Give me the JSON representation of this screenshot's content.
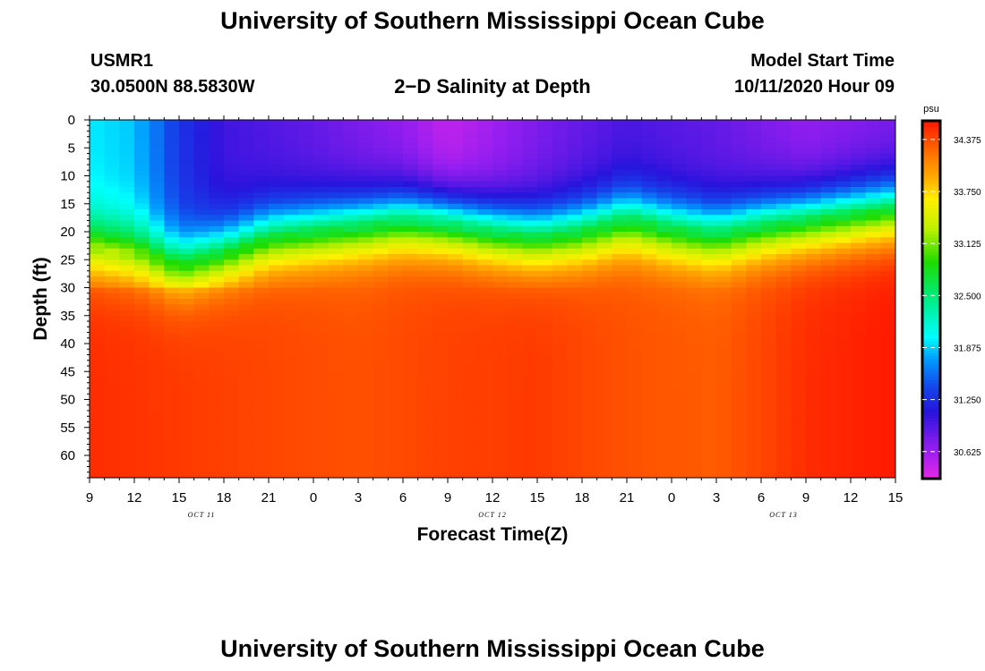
{
  "page": {
    "top_title": "University of Southern Mississippi Ocean Cube",
    "bottom_title": "University of Southern Mississippi Ocean Cube",
    "station": "USMR1",
    "coords": "30.0500N 88.5830W",
    "plot_title": "2−D Salinity at Depth",
    "model_label": "Model Start Time",
    "model_time": "10/11/2020 Hour 09"
  },
  "chart_data": {
    "type": "heatmap",
    "title": "2−D Salinity at Depth",
    "xlabel": "Forecast Time(Z)",
    "ylabel": "Depth (ft)",
    "x_ticks": [
      "9",
      "12",
      "15",
      "18",
      "21",
      "0",
      "3",
      "6",
      "9",
      "12",
      "15",
      "18",
      "21",
      "0",
      "3",
      "6",
      "9",
      "12",
      "15"
    ],
    "x_range_hours": [
      0,
      54
    ],
    "date_labels": [
      {
        "label": "OCT 11",
        "hour": 7.5
      },
      {
        "label": "OCT 12",
        "hour": 27
      },
      {
        "label": "OCT 13",
        "hour": 46.5
      }
    ],
    "y_ticks": [
      0,
      5,
      10,
      15,
      20,
      25,
      30,
      35,
      40,
      45,
      50,
      55,
      60
    ],
    "y_range": [
      0,
      64
    ],
    "colorbar": {
      "unit": "psu",
      "min": 30.3,
      "max": 34.6,
      "ticks": [
        "34.375",
        "33.750",
        "33.125",
        "32.500",
        "31.875",
        "31.250",
        "30.625"
      ]
    },
    "halocline_depth_ft": [
      {
        "hour": 0,
        "depth": 21
      },
      {
        "hour": 3,
        "depth": 22
      },
      {
        "hour": 6,
        "depth": 24.5
      },
      {
        "hour": 9,
        "depth": 22
      },
      {
        "hour": 12,
        "depth": 19
      },
      {
        "hour": 15,
        "depth": 18
      },
      {
        "hour": 18,
        "depth": 17
      },
      {
        "hour": 21,
        "depth": 16
      },
      {
        "hour": 24,
        "depth": 16.5
      },
      {
        "hour": 27,
        "depth": 18
      },
      {
        "hour": 30,
        "depth": 19
      },
      {
        "hour": 33,
        "depth": 18
      },
      {
        "hour": 36,
        "depth": 16
      },
      {
        "hour": 39,
        "depth": 17.5
      },
      {
        "hour": 42,
        "depth": 18.5
      },
      {
        "hour": 45,
        "depth": 17
      },
      {
        "hour": 48,
        "depth": 16
      },
      {
        "hour": 51,
        "depth": 15
      },
      {
        "hour": 54,
        "depth": 14
      }
    ],
    "surface_salinity": [
      {
        "hour": 0,
        "value": 31.95
      },
      {
        "hour": 3,
        "value": 31.85
      },
      {
        "hour": 6,
        "value": 31.3
      },
      {
        "hour": 9,
        "value": 31.0
      },
      {
        "hour": 15,
        "value": 30.85
      },
      {
        "hour": 21,
        "value": 30.65
      },
      {
        "hour": 24,
        "value": 30.45
      },
      {
        "hour": 30,
        "value": 30.75
      },
      {
        "hour": 36,
        "value": 30.95
      },
      {
        "hour": 42,
        "value": 30.85
      },
      {
        "hour": 48,
        "value": 30.65
      },
      {
        "hour": 54,
        "value": 30.75
      }
    ],
    "bottom_salinity": [
      {
        "hour": 0,
        "value": 34.5
      },
      {
        "hour": 6,
        "value": 34.45
      },
      {
        "hour": 12,
        "value": 34.4
      },
      {
        "hour": 18,
        "value": 34.35
      },
      {
        "hour": 24,
        "value": 34.42
      },
      {
        "hour": 30,
        "value": 34.45
      },
      {
        "hour": 36,
        "value": 34.35
      },
      {
        "hour": 42,
        "value": 34.3
      },
      {
        "hour": 48,
        "value": 34.5
      },
      {
        "hour": 54,
        "value": 34.58
      }
    ]
  }
}
